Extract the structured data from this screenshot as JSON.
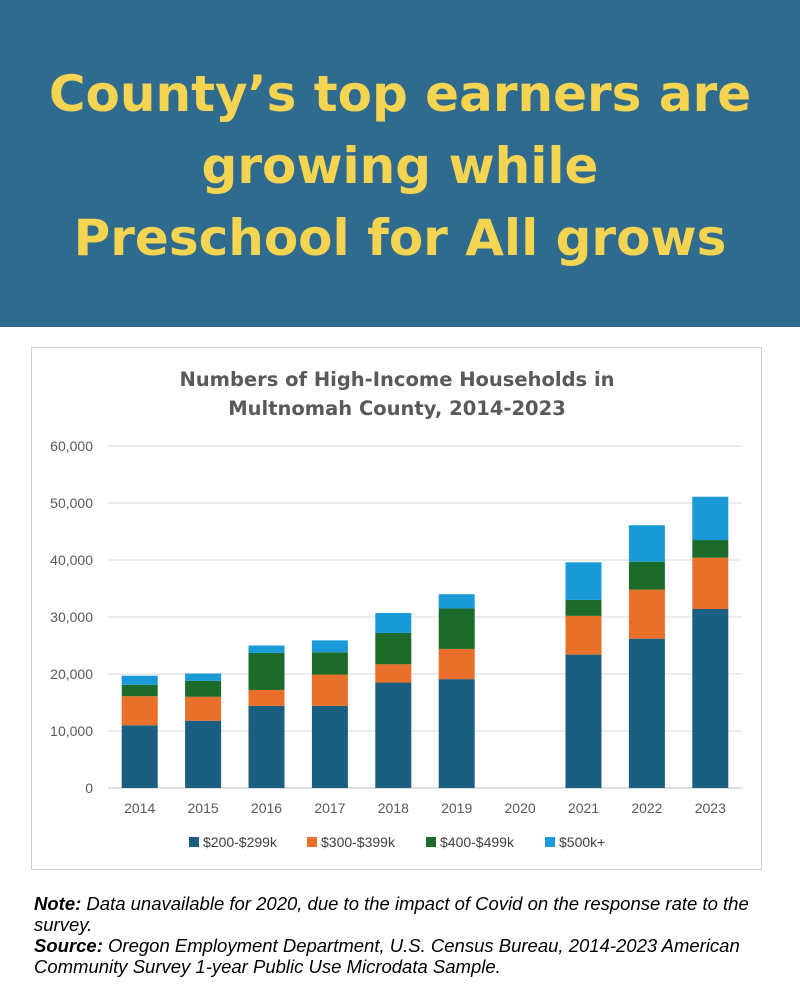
{
  "banner": {
    "title_lines": [
      "County’s top earners are",
      "growing while",
      "Preschool for All grows"
    ]
  },
  "colors": {
    "banner_bg": "#2f6b8e",
    "banner_text": "#f5d451"
  },
  "chart_data": {
    "type": "bar",
    "stacked": true,
    "title_lines": [
      "Numbers of High-Income Households in",
      "Multnomah County, 2014-2023"
    ],
    "xlabel": "",
    "ylabel": "",
    "ylim": [
      0,
      60000
    ],
    "yticks": [
      "60,000",
      "50,000",
      "40,000",
      "30,000",
      "20,000",
      "10,000",
      "0"
    ],
    "categories": [
      "2014",
      "2015",
      "2016",
      "2017",
      "2018",
      "2019",
      "2020",
      "2021",
      "2022",
      "2023"
    ],
    "series": [
      {
        "name": "$200-$299k",
        "color": "#1a5e80",
        "values": [
          11000,
          11800,
          14400,
          14400,
          18500,
          19100,
          null,
          23400,
          26200,
          31400
        ]
      },
      {
        "name": "$300-$399k",
        "color": "#e8702a",
        "values": [
          5100,
          4200,
          2800,
          5500,
          3200,
          5300,
          null,
          6800,
          8600,
          9000
        ]
      },
      {
        "name": "$400-$499k",
        "color": "#1d6b2a",
        "values": [
          2000,
          2800,
          6500,
          3900,
          5500,
          7100,
          null,
          2800,
          4900,
          3100
        ]
      },
      {
        "name": "$500k+",
        "color": "#1a9bd7",
        "values": [
          1600,
          1300,
          1300,
          2100,
          3500,
          2500,
          null,
          6600,
          6400,
          7600
        ]
      }
    ],
    "grid": true,
    "legend_position": "bottom"
  },
  "note": {
    "note_label": "Note:",
    "note_text": " Data unavailable for 2020, due to the impact of Covid on the response rate to the survey.",
    "source_label": "Source:",
    "source_text": " Oregon Employment Department, U.S. Census Bureau, 2014-2023 American Community Survey 1-year Public Use Microdata Sample."
  }
}
